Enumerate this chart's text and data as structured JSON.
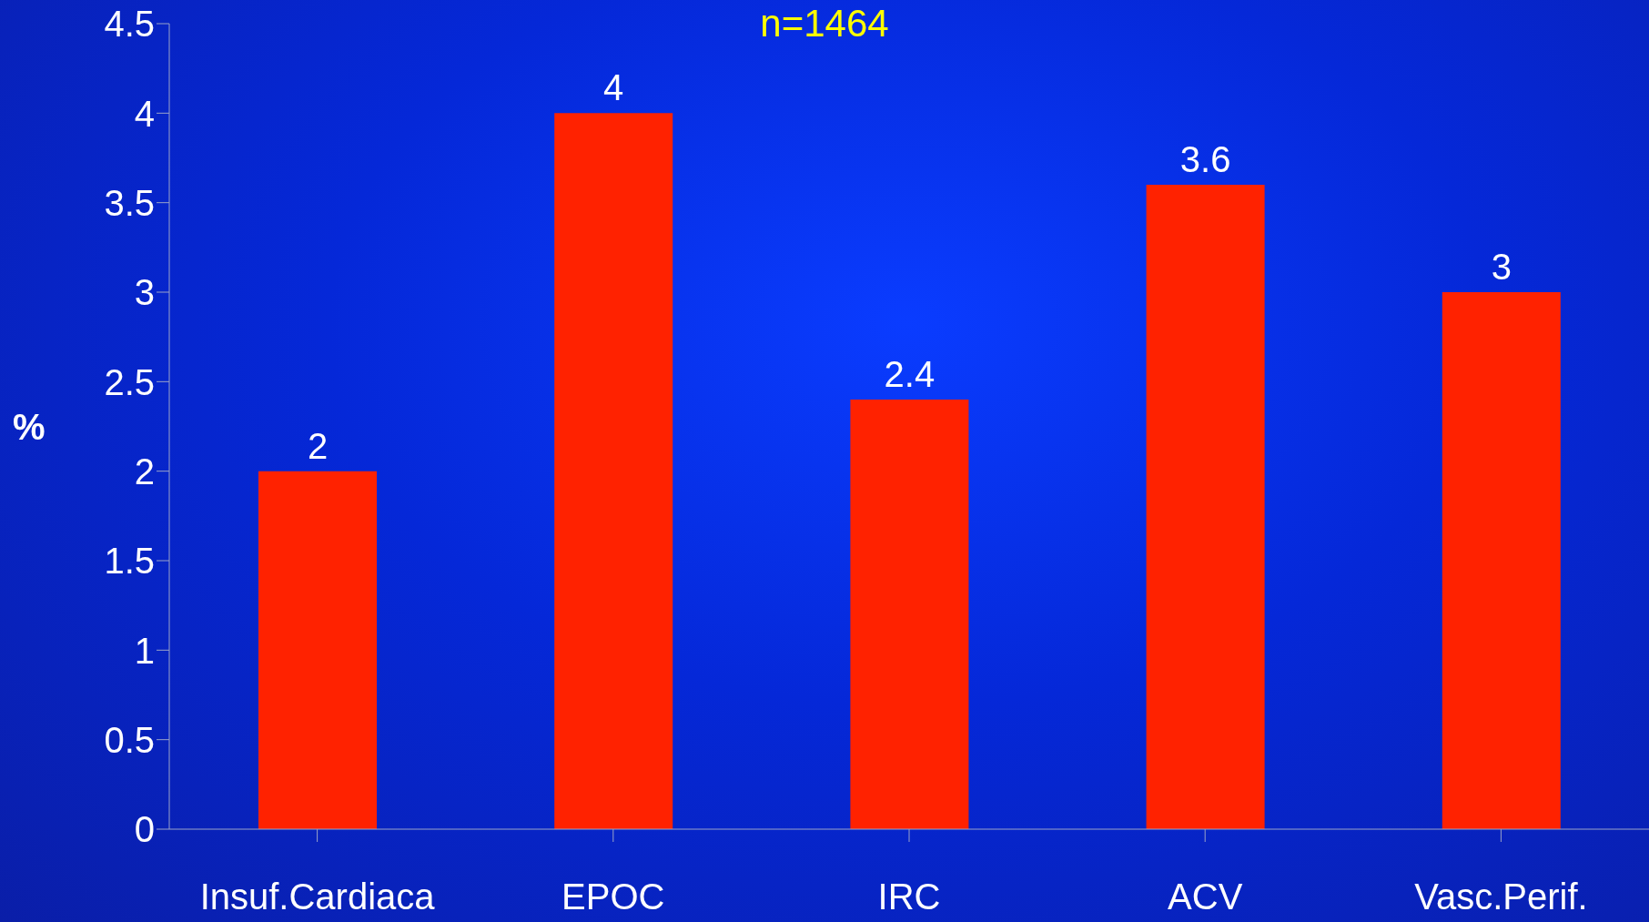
{
  "chart_data": {
    "type": "bar",
    "title": "n=1464",
    "ylabel": "%",
    "categories": [
      "Insuf.Cardiaca",
      "EPOC",
      "IRC",
      "ACV",
      "Vasc.Perif."
    ],
    "values": [
      2,
      4,
      2.4,
      3.6,
      3
    ],
    "color": "#ff2200",
    "ylim": [
      0,
      4.5
    ],
    "yticks": [
      0,
      0.5,
      1,
      1.5,
      2,
      2.5,
      3,
      3.5,
      4,
      4.5
    ],
    "data_labels": true,
    "grid": false
  }
}
